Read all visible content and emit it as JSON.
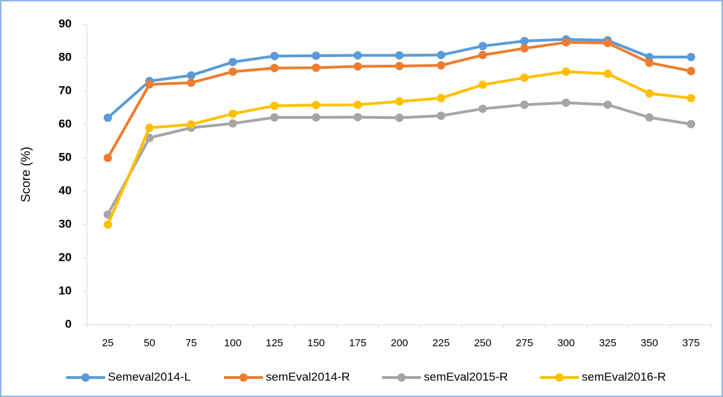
{
  "chart_data": {
    "type": "line",
    "y_label": "Score (%)",
    "categories": [
      25,
      50,
      75,
      100,
      125,
      150,
      175,
      200,
      225,
      250,
      275,
      300,
      325,
      350,
      375
    ],
    "series": [
      {
        "name": "Semeval2014-L",
        "color": "#5b9bd5",
        "values": [
          62,
          73,
          74.7,
          78.7,
          80.5,
          80.6,
          80.7,
          80.7,
          80.8,
          83.5,
          85,
          85.5,
          85.2,
          80.2,
          80.2
        ]
      },
      {
        "name": "semEval2014-R",
        "color": "#ed7d31",
        "values": [
          50,
          72,
          72.5,
          75.8,
          76.9,
          77,
          77.4,
          77.5,
          77.7,
          80.8,
          82.8,
          84.6,
          84.4,
          78.5,
          76
        ]
      },
      {
        "name": "semEval2015-R",
        "color": "#a5a5a5",
        "values": [
          33,
          56,
          59,
          60.3,
          62.1,
          62.1,
          62.2,
          62,
          62.6,
          64.7,
          65.9,
          66.5,
          65.9,
          62.1,
          60.1
        ]
      },
      {
        "name": "semEval2016-R",
        "color": "#ffc000",
        "values": [
          30,
          59,
          60,
          63.2,
          65.6,
          65.8,
          65.9,
          66.9,
          67.9,
          71.9,
          74,
          75.8,
          75.2,
          69.3,
          67.9
        ]
      }
    ],
    "ylim": [
      0,
      90
    ],
    "yticks": [
      0,
      10,
      20,
      30,
      40,
      50,
      60,
      70,
      80,
      90
    ],
    "grid": false,
    "legend": "bottom"
  }
}
